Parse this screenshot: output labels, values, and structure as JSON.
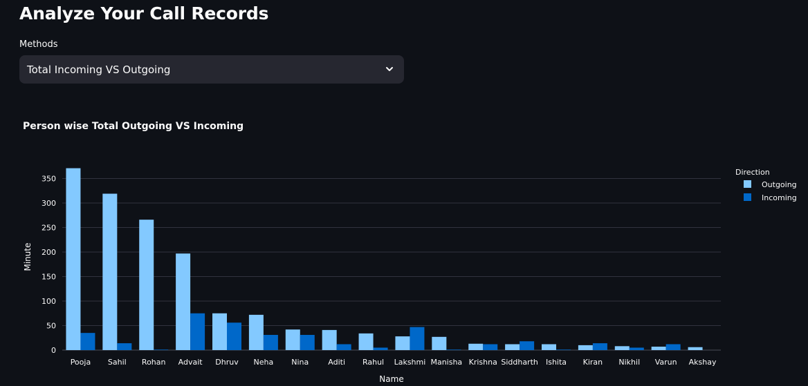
{
  "header": {
    "title": "Analyze Your Call Records"
  },
  "methods": {
    "label": "Methods",
    "selected": "Total Incoming VS Outgoing"
  },
  "colors": {
    "background": "#0e1117",
    "select_bg": "#262730",
    "outgoing": "#83c9ff",
    "incoming": "#0068c9",
    "grid": "#31333f",
    "tick_text": "#fafafa"
  },
  "chart_data": {
    "type": "bar",
    "title": "Person wise Total Outgoing VS Incoming",
    "xlabel": "Name",
    "ylabel": "Minute",
    "ylim": [
      0,
      380
    ],
    "yticks": [
      0,
      50,
      100,
      150,
      200,
      250,
      300,
      350
    ],
    "grid": true,
    "barmode": "group",
    "legend": {
      "title": "Direction",
      "placement": "top-right"
    },
    "categories": [
      "Pooja",
      "Sahil",
      "Rohan",
      "Advait",
      "Dhruv",
      "Neha",
      "Nina",
      "Aditi",
      "Rahul",
      "Lakshmi",
      "Manisha",
      "Krishna",
      "Siddharth",
      "Ishita",
      "Kiran",
      "Nikhil",
      "Varun",
      "Akshay"
    ],
    "series": [
      {
        "name": "Outgoing",
        "color": "#83c9ff",
        "values": [
          371,
          319,
          266,
          197,
          75,
          72,
          42,
          41,
          34,
          28,
          27,
          13,
          12,
          12,
          10,
          8,
          7,
          6
        ]
      },
      {
        "name": "Incoming",
        "color": "#0068c9",
        "values": [
          35,
          14,
          1,
          75,
          56,
          31,
          31,
          12,
          5,
          47,
          1,
          12,
          18,
          1,
          14,
          5,
          12,
          0
        ]
      }
    ]
  }
}
